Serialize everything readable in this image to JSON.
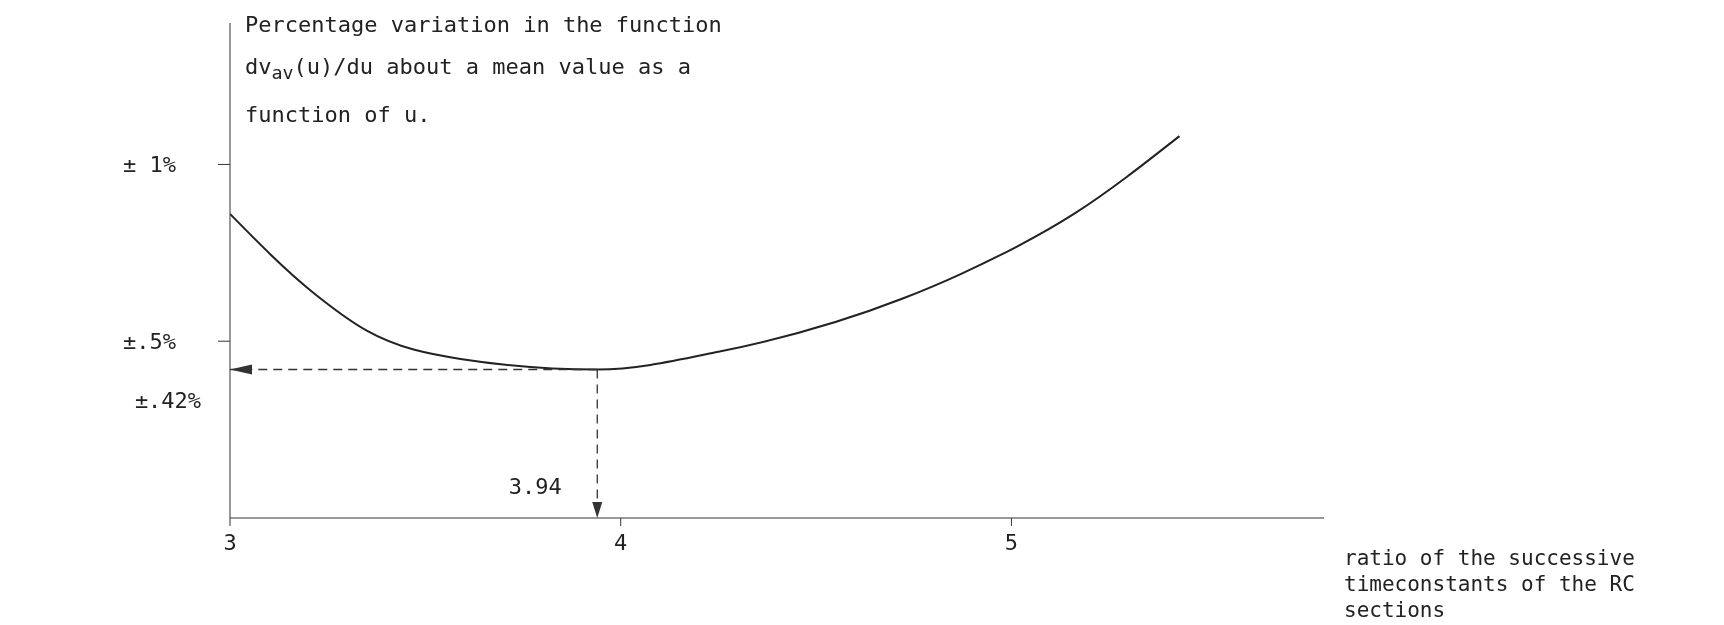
{
  "chart_data": {
    "type": "line",
    "ylabel": "Percentage variation in the function dv$_{av}$(u)/du about a mean value as a function of u.",
    "xlabel": "ratio of the successive timeconstants of the RC sections",
    "x": [
      3,
      3.21,
      3.35,
      3.59,
      3.94,
      4.25,
      4.72,
      4.87,
      5.16,
      5.43
    ],
    "series": [
      {
        "color": "#222222",
        "values": [
          0.86,
          0.64,
          0.53,
          0.45,
          0.42,
          0.47,
          0.62,
          0.69,
          0.86,
          1.08
        ]
      }
    ],
    "xlim": [
      3,
      5.8
    ],
    "xticks": [
      3,
      4,
      5
    ],
    "ylim": [
      0,
      1.4
    ],
    "yticks": [
      {
        "value": 0.5,
        "label": "±.5%"
      },
      {
        "value": 1,
        "label": "± 1%"
      }
    ],
    "ref_lines": [
      {
        "axis": "y",
        "value": 0.42,
        "label": "±.42%",
        "line_style": "dashed"
      },
      {
        "axis": "x",
        "value": 3.94,
        "label": "3.94",
        "line_style": "dashed"
      }
    ],
    "grid": false,
    "legend": false,
    "marker": "none",
    "line_style": "solid"
  }
}
